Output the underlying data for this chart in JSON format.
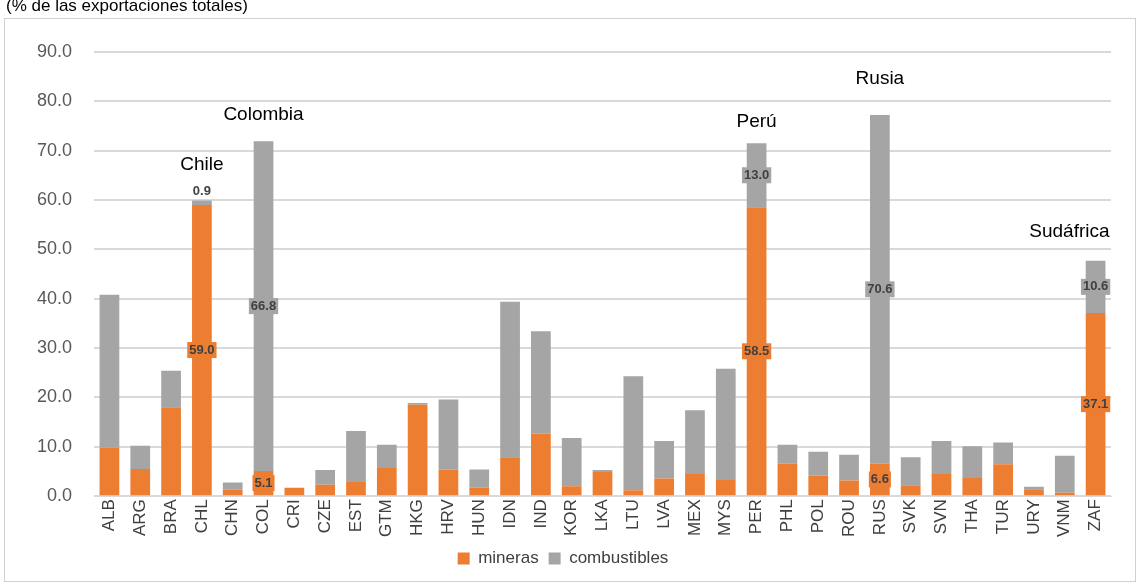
{
  "chart_data": {
    "type": "bar",
    "subtitle": "(% de las exportaciones totales)",
    "stacked": true,
    "grid": "y",
    "legend": "bottom",
    "categories": [
      "ALB",
      "ARG",
      "BRA",
      "CHL",
      "CHN",
      "COL",
      "CRI",
      "CZE",
      "EST",
      "GTM",
      "HKG",
      "HRV",
      "HUN",
      "IDN",
      "IND",
      "KOR",
      "LKA",
      "LTU",
      "LVA",
      "MEX",
      "MYS",
      "PER",
      "PHL",
      "POL",
      "ROU",
      "RUS",
      "SVK",
      "SVN",
      "THA",
      "TUR",
      "URY",
      "VNM",
      "ZAF"
    ],
    "series": [
      {
        "name": "mineras",
        "color": "#ed7d31",
        "values": [
          9.8,
          5.5,
          18.0,
          59.0,
          1.3,
          5.1,
          1.7,
          2.3,
          2.9,
          5.7,
          18.5,
          5.4,
          1.7,
          7.9,
          12.7,
          2.0,
          4.9,
          1.2,
          3.6,
          4.5,
          3.3,
          58.5,
          6.6,
          4.2,
          3.2,
          6.6,
          2.2,
          4.5,
          3.7,
          6.5,
          1.4,
          0.7,
          37.1
        ],
        "value_labels": [
          null,
          null,
          null,
          "59.0",
          null,
          "5.1",
          null,
          null,
          null,
          null,
          null,
          null,
          null,
          null,
          null,
          null,
          null,
          null,
          null,
          null,
          null,
          "58.5",
          null,
          null,
          null,
          "6.6",
          null,
          null,
          null,
          null,
          null,
          null,
          "37.1"
        ]
      },
      {
        "name": "combustibles",
        "color": "#a5a5a5",
        "values": [
          31.0,
          4.7,
          7.4,
          0.9,
          1.5,
          66.8,
          null,
          3.0,
          10.3,
          4.7,
          0.4,
          14.2,
          3.7,
          31.5,
          20.7,
          9.8,
          0.4,
          23.1,
          7.6,
          12.9,
          22.5,
          13.0,
          3.8,
          4.8,
          5.2,
          70.6,
          5.7,
          6.7,
          6.4,
          4.4,
          0.5,
          7.5,
          10.6
        ],
        "value_labels": [
          null,
          null,
          null,
          "0.9",
          null,
          "66.8",
          null,
          null,
          null,
          null,
          null,
          null,
          null,
          null,
          null,
          null,
          null,
          null,
          null,
          null,
          null,
          "13.0",
          null,
          null,
          null,
          "70.6",
          null,
          null,
          null,
          null,
          null,
          null,
          "10.6"
        ]
      }
    ],
    "ylim": [
      0,
      90
    ],
    "yticks": [
      {
        "value": 0,
        "label": "0.0"
      },
      {
        "value": 10,
        "label": "10.0"
      },
      {
        "value": 20,
        "label": "20.0"
      },
      {
        "value": 30,
        "label": "30.0"
      },
      {
        "value": 40,
        "label": "40.0"
      },
      {
        "value": 50,
        "label": "50.0"
      },
      {
        "value": 60,
        "label": "60.0"
      },
      {
        "value": 70,
        "label": "70.0"
      },
      {
        "value": 80,
        "label": "80.0"
      },
      {
        "value": 90,
        "label": "90.0"
      }
    ],
    "annotations": [
      "Chile",
      "Colombia",
      "Perú",
      "Rusia",
      "Sudáfrica"
    ]
  }
}
